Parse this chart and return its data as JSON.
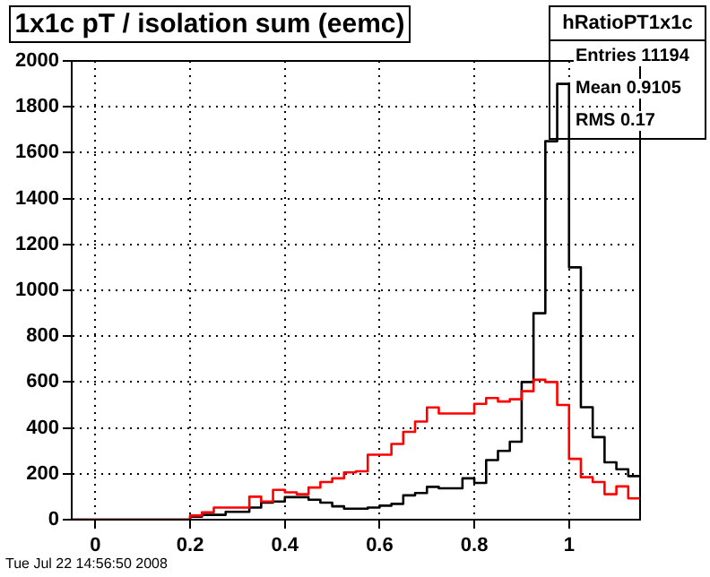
{
  "chart_data": {
    "type": "histogram",
    "title": "1x1c pT / isolation sum (eemc)",
    "bins": [
      -0.05,
      -0.025,
      0,
      0.025,
      0.05,
      0.075,
      0.1,
      0.125,
      0.15,
      0.175,
      0.2,
      0.225,
      0.25,
      0.275,
      0.3,
      0.325,
      0.35,
      0.375,
      0.4,
      0.425,
      0.45,
      0.475,
      0.5,
      0.525,
      0.55,
      0.575,
      0.6,
      0.625,
      0.65,
      0.675,
      0.7,
      0.725,
      0.75,
      0.775,
      0.8,
      0.825,
      0.85,
      0.875,
      0.9,
      0.925,
      0.95,
      0.975,
      1,
      1.025,
      1.05,
      1.075,
      1.1,
      1.125,
      1.15
    ],
    "series": [
      {
        "color": "#ff0000",
        "values": [
          0,
          0,
          0,
          0,
          0,
          0,
          0,
          0,
          0,
          0,
          18,
          32,
          53,
          53,
          53,
          100,
          79,
          130,
          119,
          111,
          140,
          164,
          180,
          206,
          211,
          283,
          283,
          330,
          383,
          428,
          489,
          463,
          463,
          463,
          505,
          530,
          515,
          525,
          560,
          610,
          600,
          500,
          265,
          185,
          164,
          111,
          145,
          93
        ]
      },
      {
        "color": "#000000",
        "values": [
          0,
          0,
          0,
          0,
          0,
          0,
          0,
          0,
          0,
          0,
          13,
          21,
          21,
          34,
          34,
          53,
          74,
          79,
          98,
          98,
          87,
          74,
          58,
          48,
          48,
          53,
          61,
          69,
          106,
          116,
          143,
          137,
          137,
          180,
          160,
          260,
          300,
          340,
          600,
          900,
          1650,
          1900,
          1100,
          490,
          360,
          250,
          220,
          190
        ]
      }
    ],
    "xlim": [
      -0.05,
      1.15
    ],
    "xticks": [
      0,
      0.2,
      0.4,
      0.6,
      0.8,
      1
    ],
    "ylim": [
      0,
      2000
    ],
    "yticks": [
      0,
      200,
      400,
      600,
      800,
      1000,
      1200,
      1400,
      1600,
      1800,
      2000
    ],
    "grid": true,
    "line_style": "solid",
    "annotations": [
      "hRatioPT1x1c",
      "Entries 11194",
      "Mean 0.9105",
      "RMS 0.17",
      "Tue Jul 22 14:56:50 2008"
    ]
  }
}
